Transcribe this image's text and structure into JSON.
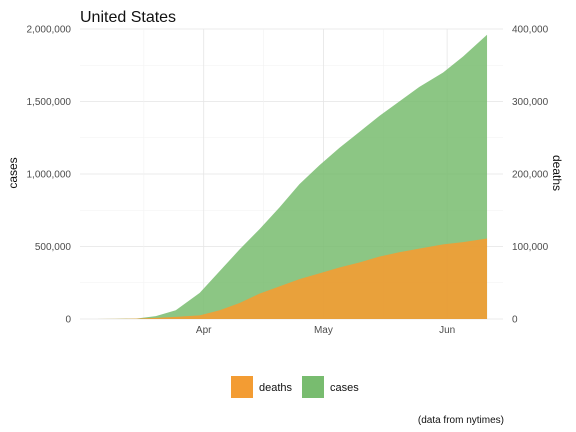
{
  "chart_data": {
    "type": "area",
    "title": "United States",
    "caption": "(data from nytimes)",
    "y_left": {
      "label": "cases",
      "ylim": [
        0,
        2000000
      ],
      "ticks": [
        0,
        500000,
        1000000,
        1500000,
        2000000
      ],
      "tick_labels": [
        "0",
        "500,000",
        "1,000,000",
        "1,500,000",
        "2,000,000"
      ]
    },
    "y_right": {
      "label": "deaths",
      "ylim": [
        0,
        400000
      ],
      "ticks": [
        0,
        100000,
        200000,
        300000,
        400000
      ],
      "tick_labels": [
        "0",
        "100,000",
        "200,000",
        "300,000",
        "400,000"
      ]
    },
    "x_ticks": [
      "2020-04-01",
      "2020-05-01",
      "2020-06-01"
    ],
    "x_tick_labels": [
      "Apr",
      "May",
      "Jun"
    ],
    "xlim": [
      "2020-03-01",
      "2020-06-15"
    ],
    "grid": true,
    "legend": {
      "position": "bottom",
      "entries": [
        "deaths",
        "cases"
      ]
    },
    "series": [
      {
        "name": "cases",
        "color": "#78BC6F",
        "axis": "left",
        "x": [
          "2020-03-01",
          "2020-03-05",
          "2020-03-10",
          "2020-03-15",
          "2020-03-20",
          "2020-03-25",
          "2020-03-31",
          "2020-04-05",
          "2020-04-10",
          "2020-04-15",
          "2020-04-20",
          "2020-04-25",
          "2020-04-30",
          "2020-05-05",
          "2020-05-10",
          "2020-05-15",
          "2020-05-20",
          "2020-05-25",
          "2020-05-31",
          "2020-06-05",
          "2020-06-11"
        ],
        "values": [
          100,
          300,
          1000,
          3000,
          20000,
          60000,
          180000,
          330000,
          480000,
          620000,
          770000,
          930000,
          1060000,
          1180000,
          1290000,
          1400000,
          1500000,
          1600000,
          1700000,
          1810000,
          1960000
        ]
      },
      {
        "name": "deaths",
        "color": "#F39C33",
        "axis": "right",
        "x": [
          "2020-03-01",
          "2020-03-05",
          "2020-03-10",
          "2020-03-15",
          "2020-03-20",
          "2020-03-25",
          "2020-03-31",
          "2020-04-05",
          "2020-04-10",
          "2020-04-15",
          "2020-04-20",
          "2020-04-25",
          "2020-04-30",
          "2020-05-05",
          "2020-05-10",
          "2020-05-15",
          "2020-05-20",
          "2020-05-25",
          "2020-05-31",
          "2020-06-05",
          "2020-06-11"
        ],
        "values": [
          0,
          0,
          100,
          500,
          1500,
          3000,
          5000,
          12000,
          22000,
          35000,
          45000,
          55000,
          63000,
          71000,
          78000,
          86000,
          92000,
          97000,
          103000,
          106000,
          111000
        ]
      }
    ]
  }
}
